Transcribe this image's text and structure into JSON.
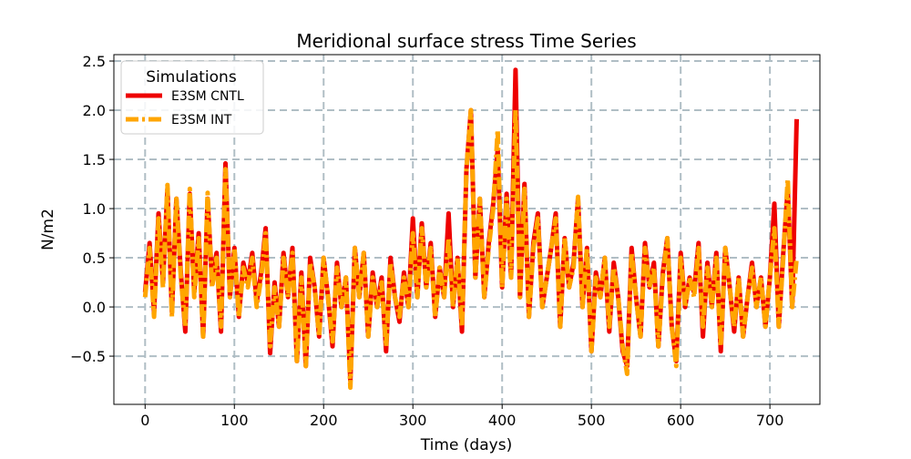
{
  "chart_data": {
    "type": "line",
    "title": "Meridional surface stress Time Series",
    "xlabel": "Time (days)",
    "ylabel": "N/m2",
    "xlim": [
      -35,
      756
    ],
    "ylim": [
      -0.99,
      2.565
    ],
    "xticks": [
      0,
      100,
      200,
      300,
      400,
      500,
      600,
      700
    ],
    "xtick_labels": [
      "0",
      "100",
      "200",
      "300",
      "400",
      "500",
      "600",
      "700"
    ],
    "yticks": [
      -0.5,
      0.0,
      0.5,
      1.0,
      1.5,
      2.0,
      2.5
    ],
    "ytick_labels": [
      "−0.5",
      "0.0",
      "0.5",
      "1.0",
      "1.5",
      "2.0",
      "2.5"
    ],
    "grid": true,
    "legend": {
      "title": "Simulations",
      "placement": "top-left"
    },
    "x_step_days": 5,
    "series": [
      {
        "name": "E3SM CNTL",
        "color": "#ee0000",
        "style": "solid",
        "values": [
          0.15,
          0.65,
          -0.05,
          0.95,
          0.25,
          1.2,
          -0.05,
          1.1,
          0.35,
          -0.25,
          1.15,
          0.15,
          0.75,
          -0.3,
          1.1,
          0.25,
          0.55,
          -0.25,
          1.46,
          0.1,
          0.6,
          -0.1,
          0.45,
          0.25,
          0.55,
          0.05,
          0.35,
          0.8,
          -0.47,
          0.25,
          -0.2,
          0.55,
          0.1,
          0.6,
          -0.55,
          0.35,
          -0.6,
          0.5,
          0.2,
          -0.3,
          0.5,
          0.1,
          -0.4,
          0.45,
          0.0,
          0.3,
          -0.75,
          0.6,
          0.1,
          0.55,
          -0.3,
          0.35,
          0.0,
          0.3,
          -0.45,
          0.5,
          0.1,
          -0.15,
          0.35,
          0.0,
          0.9,
          0.1,
          0.85,
          0.2,
          0.65,
          -0.1,
          0.4,
          0.1,
          0.95,
          0.0,
          0.5,
          -0.25,
          1.4,
          2.0,
          0.3,
          1.1,
          0.1,
          0.65,
          1.05,
          1.6,
          0.2,
          1.15,
          0.3,
          2.41,
          0.1,
          1.25,
          -0.1,
          0.65,
          0.95,
          0.0,
          0.3,
          0.6,
          0.95,
          -0.2,
          0.7,
          0.2,
          0.45,
          1.1,
          0.0,
          0.6,
          -0.45,
          0.35,
          0.1,
          0.5,
          -0.25,
          0.45,
          0.1,
          -0.45,
          -0.6,
          0.6,
          0.1,
          -0.3,
          0.65,
          0.2,
          0.45,
          -0.4,
          0.35,
          0.7,
          -0.2,
          -0.55,
          0.55,
          0.0,
          0.3,
          0.15,
          0.65,
          -0.3,
          0.45,
          0.0,
          0.55,
          -0.45,
          0.6,
          0.2,
          -0.25,
          0.3,
          -0.3,
          0.1,
          0.45,
          0.0,
          0.3,
          -0.2,
          0.3,
          1.05,
          -0.2,
          0.55,
          1.2,
          0.0,
          1.91
        ]
      },
      {
        "name": "E3SM INT",
        "color": "#ffa500",
        "style": "dashdot",
        "values": [
          0.1,
          0.6,
          -0.1,
          0.9,
          0.2,
          1.24,
          -0.1,
          1.1,
          0.3,
          -0.2,
          1.2,
          0.1,
          0.7,
          -0.3,
          1.16,
          0.2,
          0.5,
          -0.2,
          1.4,
          0.1,
          0.6,
          -0.1,
          0.4,
          0.2,
          0.5,
          0.0,
          0.3,
          0.75,
          -0.4,
          0.2,
          -0.2,
          0.5,
          0.1,
          0.55,
          -0.55,
          0.3,
          -0.6,
          0.45,
          0.2,
          -0.3,
          0.5,
          0.1,
          -0.35,
          0.4,
          0.0,
          0.3,
          -0.82,
          0.6,
          0.1,
          0.55,
          -0.3,
          0.3,
          0.0,
          0.25,
          -0.4,
          0.45,
          0.1,
          -0.1,
          0.3,
          0.0,
          0.75,
          0.1,
          0.8,
          0.2,
          0.6,
          -0.1,
          0.4,
          0.1,
          0.7,
          0.0,
          0.5,
          -0.2,
          1.4,
          2.0,
          0.3,
          1.1,
          0.1,
          0.6,
          1.0,
          1.8,
          0.2,
          1.1,
          0.3,
          2.0,
          0.1,
          1.2,
          -0.1,
          0.6,
          0.9,
          0.0,
          0.3,
          0.6,
          0.9,
          -0.2,
          0.7,
          0.2,
          0.4,
          1.12,
          0.0,
          0.6,
          -0.45,
          0.3,
          0.1,
          0.5,
          -0.2,
          0.4,
          0.1,
          -0.4,
          -0.68,
          0.55,
          0.1,
          -0.3,
          0.6,
          0.2,
          0.4,
          -0.4,
          0.3,
          0.7,
          -0.2,
          -0.6,
          0.5,
          0.0,
          0.3,
          0.1,
          0.6,
          -0.2,
          0.4,
          0.0,
          0.5,
          -0.4,
          0.6,
          0.2,
          -0.2,
          0.3,
          -0.3,
          0.1,
          0.4,
          0.0,
          0.3,
          -0.2,
          0.3,
          0.8,
          -0.2,
          0.5,
          1.3,
          0.0,
          0.5
        ]
      }
    ]
  }
}
